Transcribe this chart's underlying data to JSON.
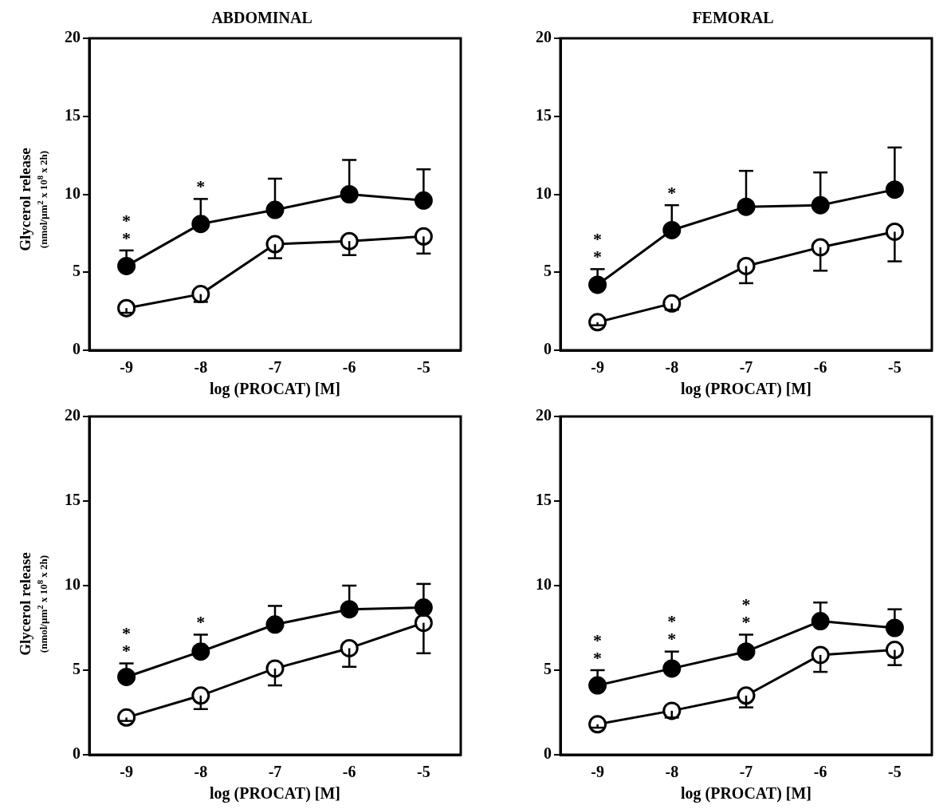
{
  "chart_data": [
    {
      "type": "line",
      "title": "ABDOMINAL",
      "xlabel": "log (PROCAT) [M]",
      "ylabel": "Glycerol release\n(nmol/µm$^{2}$ x 10$^{8}$ x 2h)",
      "x": [
        -9,
        -8,
        -7,
        -6,
        -5
      ],
      "xlim": [
        -9.5,
        -4.5
      ],
      "xticks": [
        -9,
        -8,
        -7,
        -6,
        -5
      ],
      "ylim": [
        0,
        20
      ],
      "yticks": [
        0,
        5,
        10,
        15,
        20
      ],
      "grid": false,
      "legend": false,
      "marker": "circle",
      "line_style": "solid",
      "series": [
        {
          "color": "#000000",
          "values": [
            5.4,
            8.1,
            9.0,
            10.0,
            9.6
          ],
          "errors": [
            [
              5.4,
              6.4
            ],
            [
              8.1,
              9.7
            ],
            [
              9.0,
              11.0
            ],
            [
              10.0,
              12.2
            ],
            [
              9.6,
              11.6
            ]
          ]
        },
        {
          "color": "#ffffff",
          "values": [
            2.7,
            3.6,
            6.8,
            7.0,
            7.3
          ],
          "errors": [
            [
              2.4,
              2.7
            ],
            [
              3.1,
              3.6
            ],
            [
              5.9,
              6.8
            ],
            [
              6.1,
              7.0
            ],
            [
              6.2,
              7.3
            ]
          ]
        }
      ],
      "annotations": [
        {
          "text": "*\n*",
          "x": -9,
          "y": 5.4
        },
        {
          "text": "*",
          "x": -8,
          "y": 8.1
        }
      ]
    },
    {
      "type": "line",
      "title": "FEMORAL",
      "xlabel": "log (PROCAT) [M]",
      "x": [
        -9,
        -8,
        -7,
        -6,
        -5
      ],
      "xlim": [
        -9.5,
        -4.5
      ],
      "xticks": [
        -9,
        -8,
        -7,
        -6,
        -5
      ],
      "ylim": [
        0,
        20
      ],
      "yticks": [
        0,
        5,
        10,
        15,
        20
      ],
      "grid": false,
      "legend": false,
      "marker": "circle",
      "line_style": "solid",
      "series": [
        {
          "color": "#000000",
          "values": [
            4.2,
            7.7,
            9.2,
            9.3,
            10.3
          ],
          "errors": [
            [
              4.2,
              5.2
            ],
            [
              7.7,
              9.3
            ],
            [
              9.2,
              11.5
            ],
            [
              9.3,
              11.4
            ],
            [
              10.3,
              13.0
            ]
          ]
        },
        {
          "color": "#ffffff",
          "values": [
            1.8,
            3.0,
            5.4,
            6.6,
            7.6
          ],
          "errors": [
            [
              1.6,
              1.8
            ],
            [
              2.6,
              3.0
            ],
            [
              4.3,
              5.4
            ],
            [
              5.1,
              6.6
            ],
            [
              5.7,
              7.6
            ]
          ]
        }
      ],
      "annotations": [
        {
          "text": "*\n*",
          "x": -9,
          "y": 4.2
        },
        {
          "text": "*",
          "x": -8,
          "y": 7.7
        }
      ]
    },
    {
      "type": "line",
      "xlabel": "log (PROCAT) [M]",
      "ylabel": "Glycerol release\n(nmol/µm$^{2}$ x 10$^{8}$ x 2h)",
      "x": [
        -9,
        -8,
        -7,
        -6,
        -5
      ],
      "xlim": [
        -9.5,
        -4.5
      ],
      "xticks": [
        -9,
        -8,
        -7,
        -6,
        -5
      ],
      "ylim": [
        0,
        20
      ],
      "yticks": [
        0,
        5,
        10,
        15,
        20
      ],
      "grid": false,
      "legend": false,
      "marker": "circle",
      "line_style": "solid",
      "series": [
        {
          "color": "#000000",
          "values": [
            4.6,
            6.1,
            7.7,
            8.6,
            8.7
          ],
          "errors": [
            [
              4.6,
              5.4
            ],
            [
              6.1,
              7.1
            ],
            [
              7.7,
              8.8
            ],
            [
              8.6,
              10.0
            ],
            [
              8.7,
              10.1
            ]
          ]
        },
        {
          "color": "#ffffff",
          "values": [
            2.2,
            3.5,
            5.1,
            6.3,
            7.8
          ],
          "errors": [
            [
              2.0,
              2.2
            ],
            [
              2.7,
              3.5
            ],
            [
              4.1,
              5.1
            ],
            [
              5.2,
              6.3
            ],
            [
              6.0,
              7.8
            ]
          ]
        }
      ],
      "annotations": [
        {
          "text": "*\n*",
          "x": -9,
          "y": 4.6
        },
        {
          "text": "*",
          "x": -8,
          "y": 6.1
        }
      ]
    },
    {
      "type": "line",
      "xlabel": "log (PROCAT) [M]",
      "x": [
        -9,
        -8,
        -7,
        -6,
        -5
      ],
      "xlim": [
        -9.5,
        -4.5
      ],
      "xticks": [
        -9,
        -8,
        -7,
        -6,
        -5
      ],
      "ylim": [
        0,
        20
      ],
      "yticks": [
        0,
        5,
        10,
        15,
        20
      ],
      "grid": false,
      "legend": false,
      "marker": "circle",
      "line_style": "solid",
      "series": [
        {
          "color": "#000000",
          "values": [
            4.1,
            5.1,
            6.1,
            7.9,
            7.5
          ],
          "errors": [
            [
              4.1,
              5.0
            ],
            [
              5.1,
              6.1
            ],
            [
              6.1,
              7.1
            ],
            [
              7.9,
              9.0
            ],
            [
              7.5,
              8.6
            ]
          ]
        },
        {
          "color": "#ffffff",
          "values": [
            1.8,
            2.6,
            3.5,
            5.9,
            6.2
          ],
          "errors": [
            [
              1.6,
              1.8
            ],
            [
              2.2,
              2.6
            ],
            [
              2.8,
              3.5
            ],
            [
              4.9,
              5.9
            ],
            [
              5.3,
              6.2
            ]
          ]
        }
      ],
      "annotations": [
        {
          "text": "*\n*",
          "x": -9,
          "y": 4.1
        },
        {
          "text": "*\n*",
          "x": -8,
          "y": 5.1
        },
        {
          "text": "*\n*",
          "x": -7,
          "y": 6.1
        }
      ]
    }
  ]
}
